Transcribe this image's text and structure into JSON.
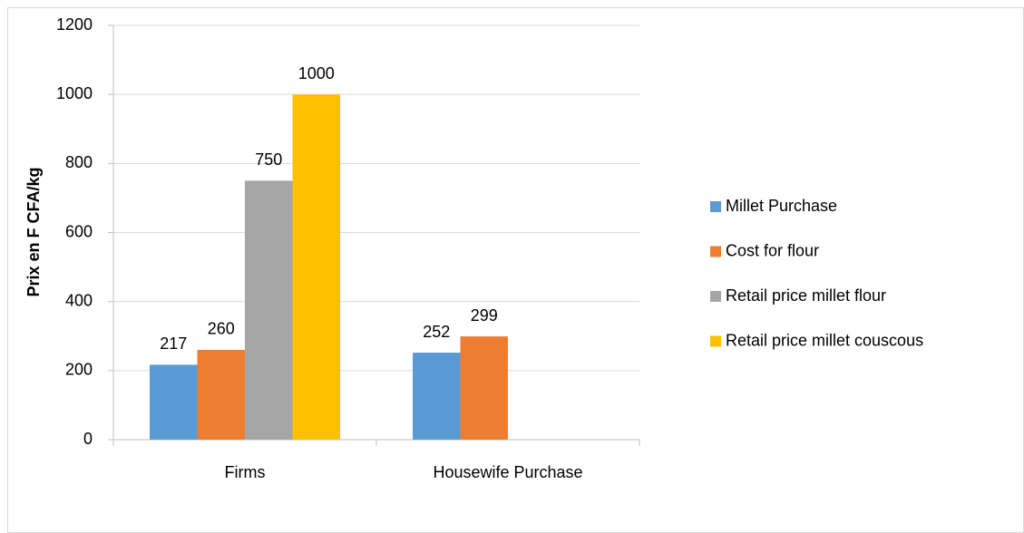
{
  "chart_data": {
    "type": "bar",
    "y_label": "Prix en F CFA/kg",
    "categories": [
      "Firms",
      "Housewife Purchase"
    ],
    "series": [
      {
        "name": "Millet Purchase",
        "color": "#5b9bd5",
        "values": [
          217,
          252
        ]
      },
      {
        "name": "Cost for flour",
        "color": "#ed7d31",
        "values": [
          260,
          299
        ]
      },
      {
        "name": "Retail price millet flour",
        "color": "#a5a5a5",
        "values": [
          750,
          null
        ]
      },
      {
        "name": "Retail price millet couscous",
        "color": "#ffc000",
        "values": [
          1000,
          null
        ]
      }
    ],
    "ylim": [
      0,
      1200
    ],
    "yticks": [
      0,
      200,
      400,
      600,
      800,
      1000,
      1200
    ],
    "grid": true,
    "legend": "right"
  }
}
